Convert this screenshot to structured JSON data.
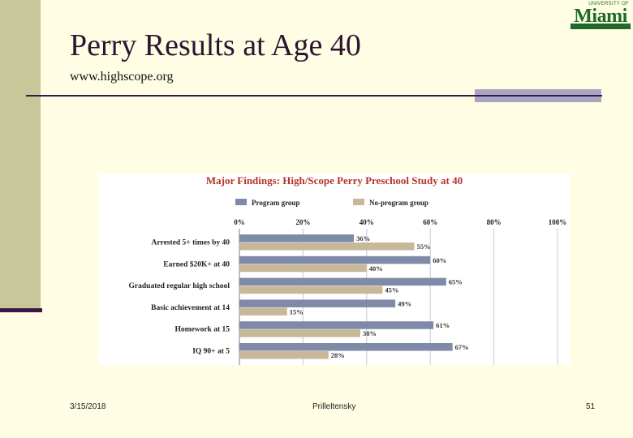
{
  "slide": {
    "title": "Perry Results at Age 40",
    "subtitle": "www.highscope.org",
    "logo_top": "UNIVERSITY OF",
    "logo_main": "Miami"
  },
  "footer": {
    "date": "3/15/2018",
    "author": "Prilleltensky",
    "page": "51"
  },
  "colors": {
    "program": "#7f8aa8",
    "no_program": "#c8b89a",
    "chart_title": "#b4322a",
    "logo_green": "#1d6a2a"
  },
  "chart_data": {
    "type": "bar",
    "orientation": "horizontal",
    "title": "Major Findings: High/Scope Perry Preschool Study at 40",
    "categories": [
      "Arrested 5+ times by 40",
      "Earned $20K+ at 40",
      "Graduated regular high school",
      "Basic achievement at 14",
      "Homework at 15",
      "IQ 90+ at 5"
    ],
    "series": [
      {
        "name": "Program group",
        "values": [
          36,
          60,
          65,
          49,
          61,
          67
        ]
      },
      {
        "name": "No-program group",
        "values": [
          55,
          40,
          45,
          15,
          38,
          28
        ]
      }
    ],
    "xlim": [
      0,
      100
    ],
    "xticks": [
      "0%",
      "20%",
      "40%",
      "60%",
      "80%",
      "100%"
    ],
    "grid": true,
    "legend_position": "top"
  }
}
